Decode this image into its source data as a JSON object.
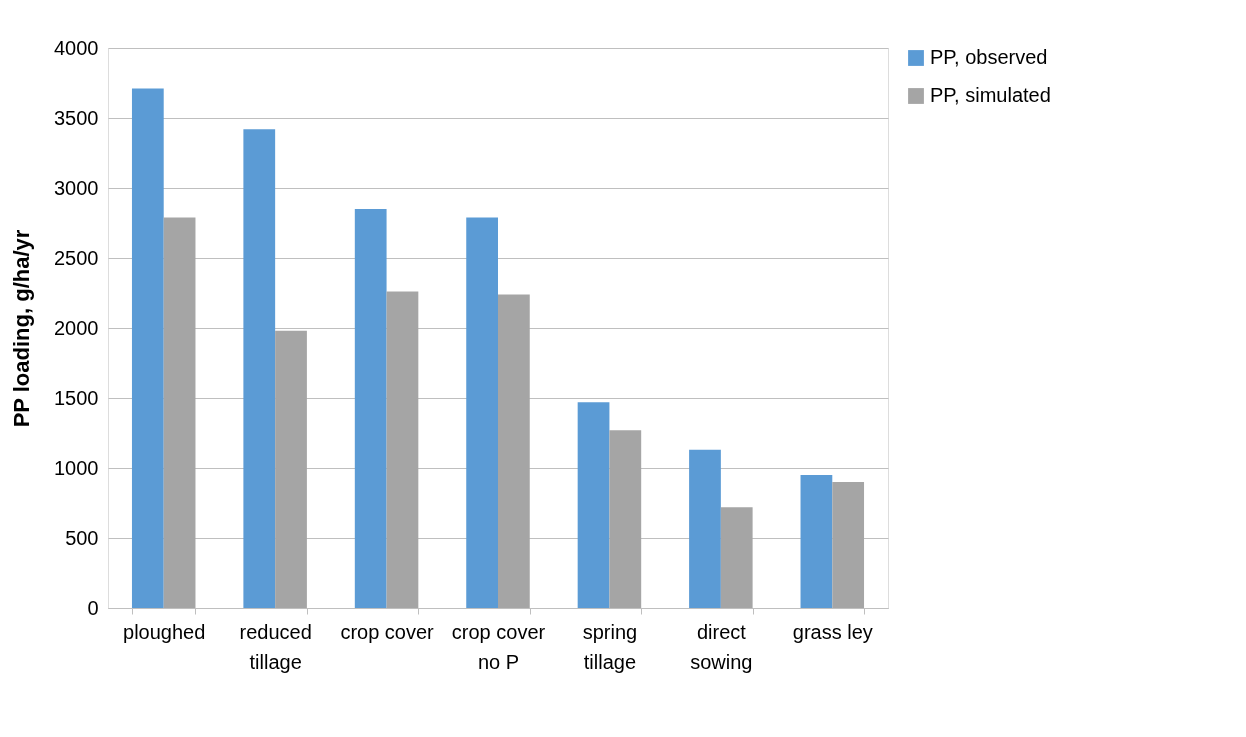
{
  "chart_data": {
    "type": "bar",
    "ylabel": "PP loading, g/ha/yr",
    "categories": [
      "ploughed",
      "reduced\ntillage",
      "crop cover",
      "crop cover\nno P",
      "spring\ntillage",
      "direct\nsowing",
      "grass ley"
    ],
    "series": [
      {
        "name": "PP, observed",
        "color": "#5b9bd5",
        "values": [
          3710,
          3420,
          2850,
          2790,
          1470,
          1130,
          950
        ]
      },
      {
        "name": "PP, simulated",
        "color": "#a5a5a5",
        "values": [
          2790,
          1980,
          2260,
          2240,
          1270,
          720,
          900
        ]
      }
    ],
    "ylim": [
      0,
      4000
    ],
    "yticks": [
      0,
      500,
      1000,
      1500,
      2000,
      2500,
      3000,
      3500,
      4000
    ],
    "grid": "y",
    "legend": "right"
  }
}
